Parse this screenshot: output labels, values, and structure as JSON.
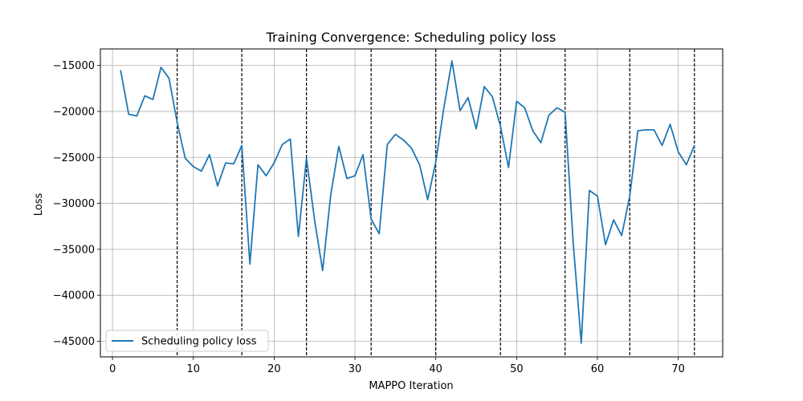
{
  "chart_data": {
    "type": "line",
    "title": "Training Convergence: Scheduling policy loss",
    "xlabel": "MAPPO Iteration",
    "ylabel": "Loss",
    "xlim": [
      -1.5,
      75.5
    ],
    "ylim": [
      -46700,
      -13200
    ],
    "x_ticks": [
      0,
      10,
      20,
      30,
      40,
      50,
      60,
      70
    ],
    "y_ticks": [
      -45000,
      -40000,
      -35000,
      -30000,
      -25000,
      -20000,
      -15000
    ],
    "y_tick_labels": [
      "−45000",
      "−40000",
      "−35000",
      "−30000",
      "−25000",
      "−20000",
      "−15000"
    ],
    "grid": true,
    "legend_position": "lower-left",
    "vlines": [
      8,
      16,
      24,
      32,
      40,
      48,
      56,
      64,
      72
    ],
    "series": [
      {
        "name": "Scheduling policy loss",
        "color": "#1f77b4",
        "x": [
          1,
          2,
          3,
          4,
          5,
          6,
          7,
          8,
          9,
          10,
          11,
          12,
          13,
          14,
          15,
          16,
          17,
          18,
          19,
          20,
          21,
          22,
          23,
          24,
          25,
          26,
          27,
          28,
          29,
          30,
          31,
          32,
          33,
          34,
          35,
          36,
          37,
          38,
          39,
          40,
          41,
          42,
          43,
          44,
          45,
          46,
          47,
          48,
          49,
          50,
          51,
          52,
          53,
          54,
          55,
          56,
          57,
          58,
          59,
          60,
          61,
          62,
          63,
          64,
          65,
          66,
          67,
          68,
          69,
          70,
          71,
          72
        ],
        "y": [
          -15500,
          -20300,
          -20500,
          -18300,
          -18700,
          -15200,
          -16400,
          -21200,
          -25100,
          -26000,
          -26500,
          -24700,
          -28100,
          -25600,
          -25700,
          -23700,
          -36600,
          -25800,
          -27000,
          -25600,
          -23600,
          -23000,
          -33600,
          -25100,
          -31800,
          -37300,
          -29100,
          -23800,
          -27300,
          -27000,
          -24700,
          -31700,
          -33300,
          -23600,
          -22500,
          -23100,
          -24000,
          -25800,
          -29600,
          -25500,
          -19600,
          -14500,
          -19900,
          -18500,
          -21900,
          -17300,
          -18400,
          -21600,
          -26100,
          -18900,
          -19600,
          -22100,
          -23400,
          -20400,
          -19600,
          -20100,
          -34300,
          -45200,
          -28600,
          -29200,
          -34500,
          -31800,
          -33500,
          -29200,
          -22100,
          -22000,
          -22000,
          -23700,
          -21400,
          -24400,
          -25800,
          -23700
        ]
      }
    ]
  }
}
